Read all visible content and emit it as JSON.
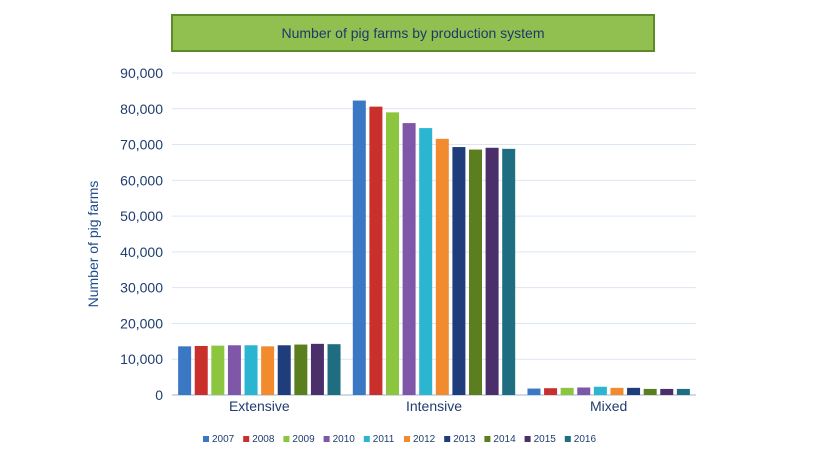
{
  "chart_data": {
    "type": "bar",
    "title": "Number of pig farms by production system",
    "xlabel": "",
    "ylabel": "Number of pig farms",
    "categories": [
      "Extensive",
      "Intensive",
      "Mixed"
    ],
    "ylim": [
      0,
      90000
    ],
    "yticks": [
      "0",
      "10,000",
      "20,000",
      "30,000",
      "40,000",
      "50,000",
      "60,000",
      "70,000",
      "80,000",
      "90,000"
    ],
    "grid": true,
    "legend_position": "bottom",
    "series": [
      {
        "name": "2007",
        "color": "#3b78c3",
        "values": [
          13600,
          82300,
          1800
        ]
      },
      {
        "name": "2008",
        "color": "#c9302c",
        "values": [
          13700,
          80600,
          1900
        ]
      },
      {
        "name": "2009",
        "color": "#8cc63f",
        "values": [
          13800,
          79000,
          2000
        ]
      },
      {
        "name": "2010",
        "color": "#7e57a8",
        "values": [
          13900,
          76000,
          2100
        ]
      },
      {
        "name": "2011",
        "color": "#2bb5d1",
        "values": [
          13900,
          74600,
          2300
        ]
      },
      {
        "name": "2012",
        "color": "#f28a2e",
        "values": [
          13600,
          71600,
          2000
        ]
      },
      {
        "name": "2013",
        "color": "#1f3d7a",
        "values": [
          13900,
          69300,
          2000
        ]
      },
      {
        "name": "2014",
        "color": "#5b7f1f",
        "values": [
          14100,
          68600,
          1700
        ]
      },
      {
        "name": "2015",
        "color": "#4a2f6b",
        "values": [
          14300,
          69100,
          1700
        ]
      },
      {
        "name": "2016",
        "color": "#1f6d80",
        "values": [
          14200,
          68800,
          1700
        ]
      }
    ]
  }
}
